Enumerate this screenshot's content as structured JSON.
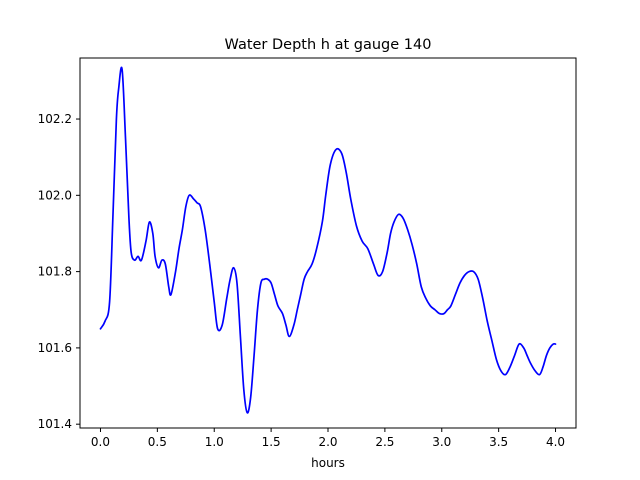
{
  "chart_data": {
    "type": "line",
    "title": "Water Depth h at gauge 140",
    "xlabel": "hours",
    "ylabel": "",
    "xlim": [
      -0.18,
      4.18
    ],
    "ylim": [
      101.39,
      102.36
    ],
    "x_ticks": [
      0.0,
      0.5,
      1.0,
      1.5,
      2.0,
      2.5,
      3.0,
      3.5,
      4.0
    ],
    "x_tick_labels": [
      "0.0",
      "0.5",
      "1.0",
      "1.5",
      "2.0",
      "2.5",
      "3.0",
      "3.5",
      "4.0"
    ],
    "y_ticks": [
      101.4,
      101.6,
      101.8,
      102.0,
      102.2
    ],
    "y_tick_labels": [
      "101.4",
      "101.6",
      "101.8",
      "102.0",
      "102.2"
    ],
    "grid": false,
    "legend": "none",
    "series": [
      {
        "color": "#0000ff",
        "x": [
          0.0,
          0.04,
          0.08,
          0.11,
          0.14,
          0.16,
          0.19,
          0.22,
          0.25,
          0.27,
          0.3,
          0.33,
          0.36,
          0.4,
          0.43,
          0.46,
          0.48,
          0.51,
          0.54,
          0.57,
          0.6,
          0.62,
          0.66,
          0.69,
          0.72,
          0.75,
          0.78,
          0.82,
          0.85,
          0.88,
          0.92,
          0.96,
          1.0,
          1.03,
          1.07,
          1.11,
          1.14,
          1.17,
          1.2,
          1.23,
          1.26,
          1.29,
          1.32,
          1.35,
          1.38,
          1.41,
          1.44,
          1.47,
          1.5,
          1.53,
          1.56,
          1.6,
          1.63,
          1.66,
          1.7,
          1.73,
          1.76,
          1.79,
          1.82,
          1.86,
          1.9,
          1.95,
          1.98,
          2.02,
          2.07,
          2.12,
          2.16,
          2.2,
          2.25,
          2.3,
          2.35,
          2.4,
          2.44,
          2.48,
          2.52,
          2.55,
          2.58,
          2.62,
          2.66,
          2.7,
          2.74,
          2.78,
          2.82,
          2.86,
          2.9,
          2.94,
          2.98,
          3.02,
          3.05,
          3.08,
          3.12,
          3.16,
          3.2,
          3.24,
          3.28,
          3.32,
          3.36,
          3.4,
          3.44,
          3.48,
          3.52,
          3.56,
          3.6,
          3.64,
          3.68,
          3.72,
          3.75,
          3.78,
          3.82,
          3.86,
          3.89,
          3.92,
          3.95,
          3.98,
          4.0
        ],
        "y": [
          101.65,
          101.67,
          101.72,
          101.95,
          102.2,
          102.28,
          102.33,
          102.15,
          101.94,
          101.85,
          101.83,
          101.84,
          101.83,
          101.88,
          101.93,
          101.9,
          101.84,
          101.81,
          101.83,
          101.82,
          101.76,
          101.74,
          101.8,
          101.86,
          101.91,
          101.97,
          102.0,
          101.99,
          101.98,
          101.97,
          101.91,
          101.82,
          101.72,
          101.65,
          101.66,
          101.73,
          101.78,
          101.81,
          101.77,
          101.63,
          101.49,
          101.43,
          101.47,
          101.58,
          101.7,
          101.77,
          101.78,
          101.78,
          101.77,
          101.74,
          101.71,
          101.69,
          101.66,
          101.63,
          101.66,
          101.7,
          101.74,
          101.78,
          101.8,
          101.82,
          101.86,
          101.93,
          102.0,
          102.08,
          102.12,
          102.11,
          102.06,
          101.99,
          101.92,
          101.88,
          101.86,
          101.82,
          101.79,
          101.8,
          101.85,
          101.9,
          101.93,
          101.95,
          101.94,
          101.91,
          101.87,
          101.82,
          101.76,
          101.73,
          101.71,
          101.7,
          101.69,
          101.69,
          101.7,
          101.71,
          101.74,
          101.77,
          101.79,
          101.8,
          101.8,
          101.78,
          101.73,
          101.67,
          101.62,
          101.57,
          101.54,
          101.53,
          101.55,
          101.58,
          101.61,
          101.6,
          101.58,
          101.56,
          101.54,
          101.53,
          101.55,
          101.58,
          101.6,
          101.61,
          101.61
        ]
      }
    ]
  }
}
